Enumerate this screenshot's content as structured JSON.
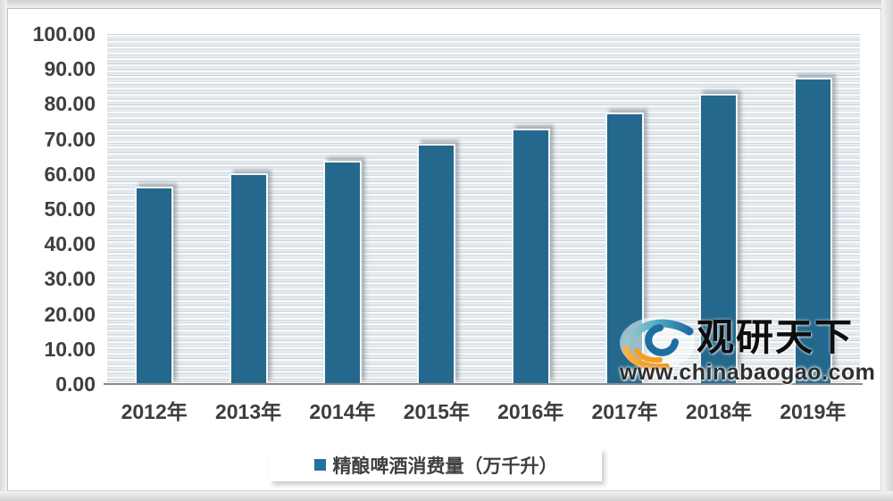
{
  "chart_data": {
    "type": "bar",
    "title": "",
    "categories": [
      "2012年",
      "2013年",
      "2014年",
      "2015年",
      "2016年",
      "2017年",
      "2018年",
      "2019年"
    ],
    "series": [
      {
        "name": "精酿啤酒消费量（万千升）",
        "values": [
          56.5,
          60.1,
          63.8,
          68.7,
          73.0,
          77.6,
          82.9,
          87.4
        ]
      }
    ],
    "xlabel": "",
    "ylabel": "",
    "ylim": [
      0,
      100
    ],
    "ytick_step": 10,
    "ytick_labels": [
      "100.00",
      "90.00",
      "80.00",
      "70.00",
      "60.00",
      "50.00",
      "40.00",
      "30.00",
      "20.00",
      "10.00",
      "0.00"
    ],
    "grid": "fine horizontal pinstripes, plot background pale blue",
    "legend_position": "bottom",
    "bar_color": "#25688d"
  },
  "legend": {
    "marker_icon": "legend-square-icon",
    "marker_color": "#2272a0",
    "label": "精酿啤酒消费量（万千升）"
  },
  "watermark": {
    "logo_icon": "eye-swirl-logo",
    "brand": "观研天下",
    "url": "www.chinabaogao.com",
    "colors": {
      "teal": "#56b0c3",
      "blue": "#1d6ea3",
      "orange": "#f5a01e"
    }
  }
}
